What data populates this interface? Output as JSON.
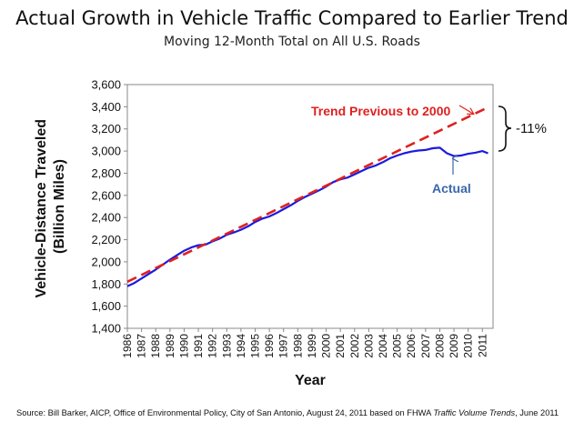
{
  "title": "Actual Growth in Vehicle Traffic Compared to Earlier Trend",
  "subtitle": "Moving 12-Month Total on All U.S. Roads",
  "source": {
    "prefix": "Source:  Bill Barker, AICP,  Office of Environmental Policy, City of San Antonio, August 24, 2011 based on FHWA ",
    "italic": "Traffic Volume Trends",
    "suffix": ", June 2011"
  },
  "colors": {
    "actual": "#1a1adf",
    "trend": "#e02020",
    "actual_label": "#3a67a8",
    "trend_label": "#e02020"
  },
  "chart_data": {
    "type": "line",
    "xlabel": "Year",
    "ylabel": "Vehicle-Distance Traveled\n(Billion Miles)",
    "ylim": [
      1400,
      3600
    ],
    "xlim": [
      1986,
      2011.75
    ],
    "yticks": [
      "1,400",
      "1,600",
      "1,800",
      "2,000",
      "2,200",
      "2,400",
      "2,600",
      "2,800",
      "3,000",
      "3,200",
      "3,400",
      "3,600"
    ],
    "xticks": [
      "1986",
      "1987",
      "1988",
      "1989",
      "1990",
      "1991",
      "1992",
      "1993",
      "1994",
      "1995",
      "1996",
      "1997",
      "1998",
      "1999",
      "2000",
      "2001",
      "2002",
      "2003",
      "2004",
      "2005",
      "2006",
      "2007",
      "2008",
      "2009",
      "2010",
      "2011"
    ],
    "grid": false,
    "series": [
      {
        "name": "Actual",
        "style": "solid",
        "x": [
          1986,
          1986.5,
          1987,
          1987.5,
          1988,
          1988.5,
          1989,
          1989.5,
          1990,
          1990.5,
          1991,
          1991.5,
          1992,
          1992.5,
          1993,
          1993.5,
          1994,
          1994.5,
          1995,
          1995.5,
          1996,
          1996.5,
          1997,
          1997.5,
          1998,
          1998.5,
          1999,
          1999.5,
          2000,
          2000.5,
          2001,
          2001.5,
          2002,
          2002.5,
          2003,
          2003.5,
          2004,
          2004.5,
          2005,
          2005.5,
          2006,
          2006.5,
          2007,
          2007.5,
          2008,
          2008.5,
          2009,
          2009.5,
          2010,
          2010.5,
          2011,
          2011.4
        ],
        "y": [
          1780,
          1810,
          1850,
          1890,
          1930,
          1975,
          2020,
          2060,
          2100,
          2130,
          2150,
          2155,
          2185,
          2210,
          2245,
          2265,
          2290,
          2320,
          2360,
          2390,
          2410,
          2440,
          2475,
          2510,
          2550,
          2585,
          2615,
          2645,
          2680,
          2720,
          2745,
          2760,
          2790,
          2820,
          2850,
          2870,
          2900,
          2935,
          2960,
          2980,
          2995,
          3005,
          3010,
          3025,
          3030,
          2980,
          2955,
          2960,
          2975,
          2985,
          3000,
          2980
        ]
      },
      {
        "name": "Trend Previous to 2000",
        "style": "dashed",
        "x": [
          1986,
          2011.4
        ],
        "y": [
          1820,
          3395
        ]
      }
    ],
    "annotations": [
      {
        "text": "Trend Previous to 2000",
        "series": "Trend Previous to 2000"
      },
      {
        "text": "Actual",
        "series": "Actual"
      },
      {
        "text": "-11%"
      }
    ]
  }
}
